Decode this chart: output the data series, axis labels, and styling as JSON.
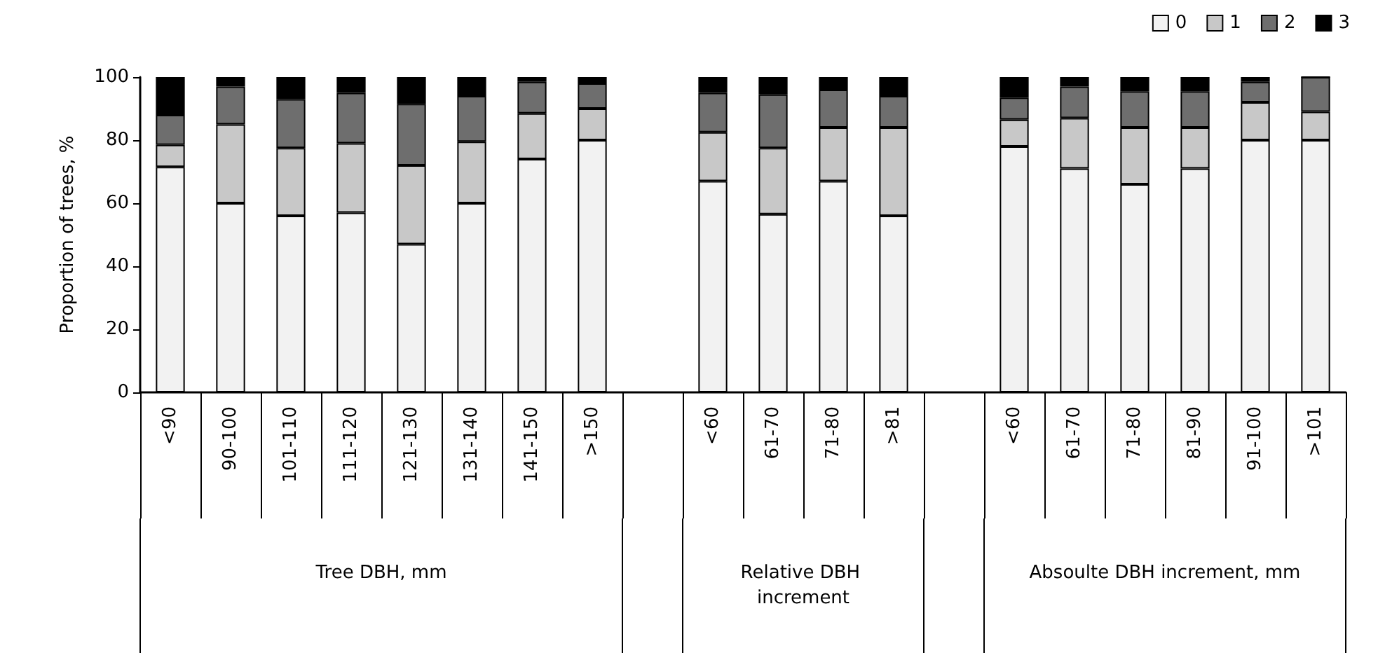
{
  "chart_data": {
    "type": "bar",
    "stacked": true,
    "ylabel": "Proportion of trees, %",
    "ylim": [
      0,
      100
    ],
    "yticks": [
      0,
      20,
      40,
      60,
      80,
      100
    ],
    "grid": false,
    "legend": "top right",
    "categories": [
      "<90",
      "90-100",
      "101-110",
      "111-120",
      "121-130",
      "131-140",
      "141-150",
      ">150",
      null,
      "<60",
      "61-70",
      "71-80",
      ">81",
      null,
      "<60",
      "61-70",
      "71-80",
      "81-90",
      "91-100",
      ">101"
    ],
    "annotations": [
      "Tree DBH, mm",
      "Relative DBH increment",
      "Absoulte DBH increment, mm"
    ],
    "series": [
      {
        "name": "0",
        "color": "#f2f2f2",
        "values": [
          71.5,
          60,
          56,
          57,
          47,
          60,
          74,
          80,
          null,
          67,
          56.5,
          67,
          56,
          null,
          78,
          71,
          66,
          71,
          80,
          80
        ]
      },
      {
        "name": "1",
        "color": "#c8c8c8",
        "values": [
          7,
          25,
          21.5,
          22,
          25,
          19.5,
          14.5,
          10,
          null,
          15.5,
          21,
          17,
          28,
          null,
          8.5,
          16,
          18,
          13,
          12,
          9
        ]
      },
      {
        "name": "2",
        "color": "#6e6e6e",
        "values": [
          9.5,
          12,
          15.5,
          16,
          19.5,
          14.5,
          10,
          8,
          null,
          12.5,
          17,
          12,
          10,
          null,
          7,
          10,
          11.5,
          11.5,
          6.5,
          11
        ]
      },
      {
        "name": "3",
        "color": "#000000",
        "values": [
          12,
          3,
          7,
          5,
          8.5,
          6,
          1.5,
          2,
          null,
          5,
          5.5,
          4,
          6,
          null,
          6.5,
          3,
          4.5,
          4.5,
          1.5,
          0
        ]
      }
    ]
  }
}
